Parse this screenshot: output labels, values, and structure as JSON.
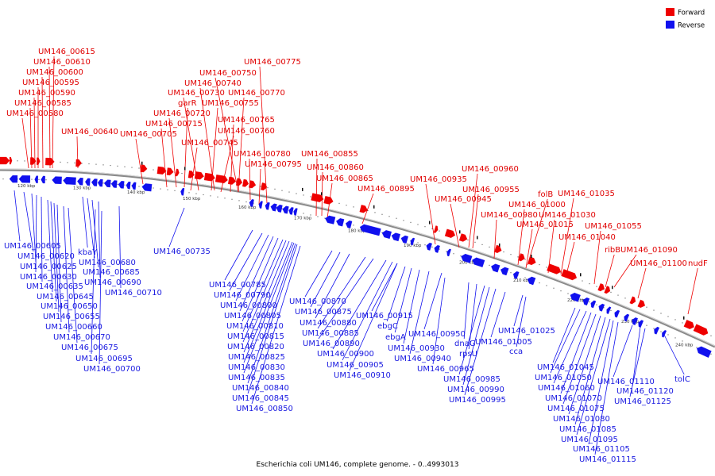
{
  "legend": {
    "forward": {
      "label": "Forward",
      "color": "#ee0000"
    },
    "reverse": {
      "label": "Reverse",
      "color": "#1010ee"
    }
  },
  "caption": "Escherichia coli UM146, complete genome. - 0..4993013",
  "colors": {
    "backbone": "#8a8a8a",
    "leader_forward": "#ee0000",
    "leader_reverse": "#1010ee"
  },
  "ticks": [
    "120 kbp",
    "130 kbp",
    "140 kbp",
    "150 kbp",
    "160 kbp",
    "170 kbp",
    "180 kbp",
    "190 kbp",
    "200 kbp",
    "210 kbp",
    "220 kbp",
    "230 kbp",
    "240 kbp"
  ],
  "forward_labels": [
    "UM146_00615",
    "UM146_00610",
    "UM146_00600",
    "UM146_00595",
    "UM146_00590",
    "UM146_00585",
    "UM146_00580",
    "UM146_00640",
    "UM146_00775",
    "UM146_00750",
    "UM146_00740",
    "UM146_00730",
    "UM146_00770",
    "garR",
    "UM146_00755",
    "UM146_00720",
    "UM146_00765",
    "UM146_00715",
    "UM146_00705",
    "UM146_00760",
    "UM146_00745",
    "UM146_00780",
    "UM146_00795",
    "UM146_00855",
    "UM146_00860",
    "UM146_00865",
    "UM146_00895",
    "UM146_00960",
    "UM146_00935",
    "UM146_00955",
    "UM146_00945",
    "folB",
    "UM146_01035",
    "UM146_01000",
    "UM146_00980",
    "UM146_01030",
    "UM146_01015",
    "UM146_01055",
    "UM146_01040",
    "ribB",
    "UM146_01090",
    "UM146_01100",
    "nudF"
  ],
  "reverse_labels": [
    "UM146_00605",
    "UM146_00620",
    "UM146_00625",
    "kbaY",
    "UM146_00630",
    "UM146_00680",
    "UM146_00685",
    "UM146_00635",
    "UM146_00690",
    "UM146_00645",
    "UM146_00710",
    "UM146_00650",
    "UM146_00655",
    "UM146_00660",
    "UM146_00670",
    "UM146_00675",
    "UM146_00695",
    "UM146_00700",
    "UM146_00735",
    "UM146_00785",
    "UM146_00790",
    "UM146_00800",
    "UM146_00805",
    "UM146_00810",
    "UM146_00815",
    "UM146_00820",
    "UM146_00825",
    "UM146_00830",
    "UM146_00835",
    "UM146_00840",
    "UM146_00845",
    "UM146_00850",
    "UM146_00870",
    "UM146_00875",
    "UM146_00880",
    "UM146_00885",
    "UM146_00890",
    "UM146_00900",
    "UM146_00905",
    "UM146_00910",
    "UM146_00915",
    "ebgC",
    "ebgA",
    "UM146_00930",
    "UM146_00940",
    "UM146_00950",
    "dnaG",
    "rpsU",
    "UM146_00965",
    "UM146_00985",
    "UM146_00990",
    "UM146_00995",
    "UM146_01025",
    "UM146_01005",
    "cca",
    "UM146_01045",
    "UM146_01050",
    "UM146_01060",
    "UM146_01070",
    "UM146_01075",
    "UM146_01080",
    "UM146_01085",
    "UM146_01095",
    "UM146_01105",
    "UM146_01115",
    "UM146_01110",
    "UM146_01120",
    "UM146_01125",
    "tolC"
  ]
}
